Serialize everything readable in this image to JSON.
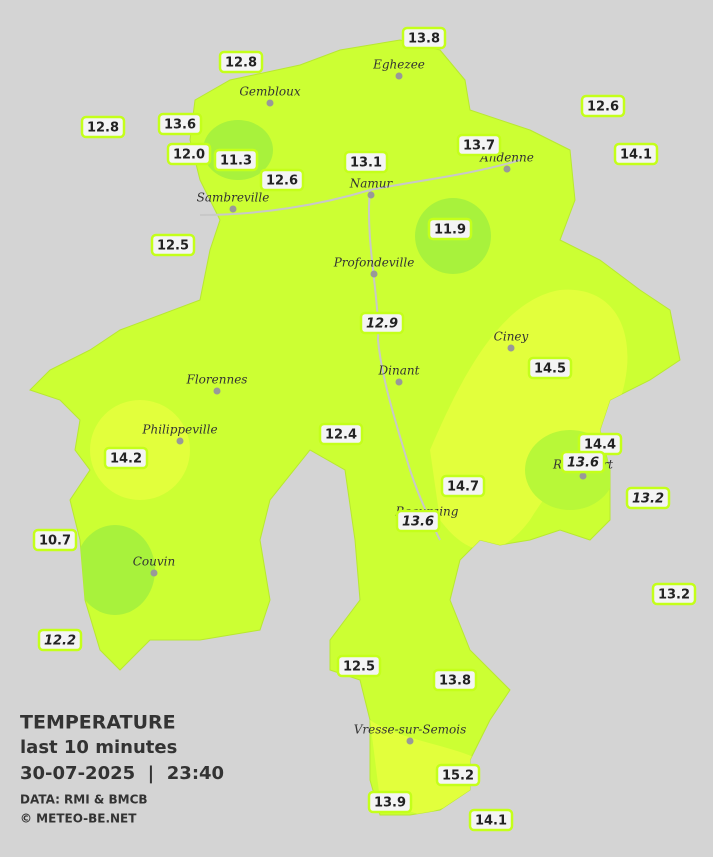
{
  "legend": {
    "title": "TEMPERATURE",
    "subtitle": "last 10 minutes",
    "datetime": "30-07-2025  |  23:40",
    "source": "DATA: RMI & BMCB",
    "credit": "© METEO-BE.NET"
  },
  "cities": [
    "Eghezee",
    "Gembloux",
    "Andenne",
    "Namur",
    "Sambreville",
    "Profondeville",
    "Ciney",
    "Dinant",
    "Florennes",
    "Philippeville",
    "Rochefort",
    "Beauraing",
    "Couvin",
    "Vresse-sur-Semois"
  ],
  "stations": [
    {
      "value": "13.8"
    },
    {
      "value": "12.8"
    },
    {
      "value": "12.6"
    },
    {
      "value": "12.8"
    },
    {
      "value": "13.6"
    },
    {
      "value": "12.0"
    },
    {
      "value": "11.3"
    },
    {
      "value": "12.6"
    },
    {
      "value": "13.1"
    },
    {
      "value": "13.7"
    },
    {
      "value": "14.1"
    },
    {
      "value": "12.5"
    },
    {
      "value": "11.9"
    },
    {
      "value": "12.9",
      "italic": true
    },
    {
      "value": "14.5"
    },
    {
      "value": "12.4"
    },
    {
      "value": "14.4"
    },
    {
      "value": "14.2"
    },
    {
      "value": "13.6",
      "italic": true
    },
    {
      "value": "14.7"
    },
    {
      "value": "13.2",
      "italic": true
    },
    {
      "value": "13.6",
      "italic": true
    },
    {
      "value": "10.7"
    },
    {
      "value": "13.2"
    },
    {
      "value": "12.2",
      "italic": true
    },
    {
      "value": "12.5"
    },
    {
      "value": "13.8"
    },
    {
      "value": "15.2"
    },
    {
      "value": "13.9"
    },
    {
      "value": "14.1"
    }
  ]
}
